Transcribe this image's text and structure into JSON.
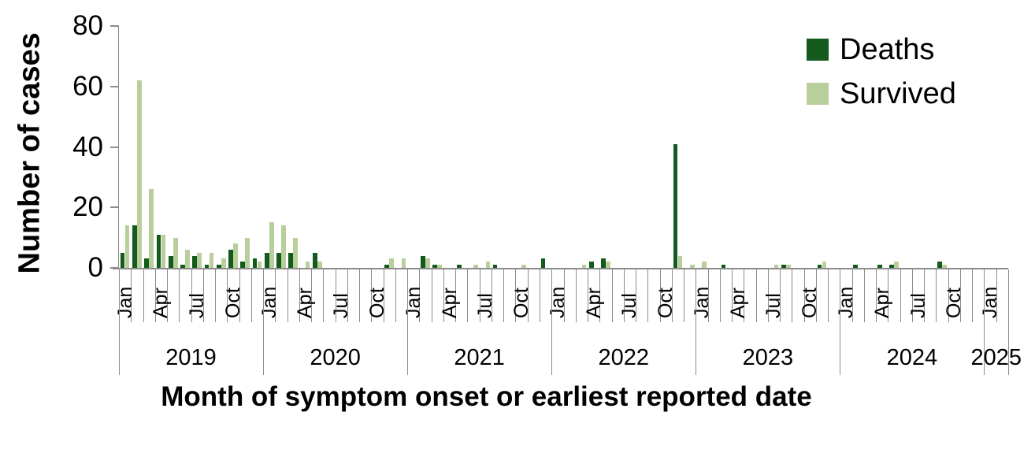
{
  "chart_data": {
    "type": "bar",
    "title": "",
    "xlabel": "Month of symptom onset or earliest reported date",
    "ylabel": "Number of cases",
    "ylim": [
      0,
      80
    ],
    "y_ticks": [
      0,
      20,
      40,
      60,
      80
    ],
    "grid": false,
    "legend_position": "top-right",
    "x_tick_labels_shown": [
      "Jan",
      "Apr",
      "Jul",
      "Oct"
    ],
    "years": [
      {
        "label": "2019",
        "months": 12
      },
      {
        "label": "2020",
        "months": 12
      },
      {
        "label": "2021",
        "months": 12
      },
      {
        "label": "2022",
        "months": 12
      },
      {
        "label": "2023",
        "months": 12
      },
      {
        "label": "2024",
        "months": 12
      },
      {
        "label": "2025",
        "months": 2
      }
    ],
    "categories": [
      "Jan 2019",
      "Feb 2019",
      "Mar 2019",
      "Apr 2019",
      "May 2019",
      "Jun 2019",
      "Jul 2019",
      "Aug 2019",
      "Sep 2019",
      "Oct 2019",
      "Nov 2019",
      "Dec 2019",
      "Jan 2020",
      "Feb 2020",
      "Mar 2020",
      "Apr 2020",
      "May 2020",
      "Jun 2020",
      "Jul 2020",
      "Aug 2020",
      "Sep 2020",
      "Oct 2020",
      "Nov 2020",
      "Dec 2020",
      "Jan 2021",
      "Feb 2021",
      "Mar 2021",
      "Apr 2021",
      "May 2021",
      "Jun 2021",
      "Jul 2021",
      "Aug 2021",
      "Sep 2021",
      "Oct 2021",
      "Nov 2021",
      "Dec 2021",
      "Jan 2022",
      "Feb 2022",
      "Mar 2022",
      "Apr 2022",
      "May 2022",
      "Jun 2022",
      "Jul 2022",
      "Aug 2022",
      "Sep 2022",
      "Oct 2022",
      "Nov 2022",
      "Dec 2022",
      "Jan 2023",
      "Feb 2023",
      "Mar 2023",
      "Apr 2023",
      "May 2023",
      "Jun 2023",
      "Jul 2023",
      "Aug 2023",
      "Sep 2023",
      "Oct 2023",
      "Nov 2023",
      "Dec 2023",
      "Jan 2024",
      "Feb 2024",
      "Mar 2024",
      "Apr 2024",
      "May 2024",
      "Jun 2024",
      "Jul 2024",
      "Aug 2024",
      "Sep 2024",
      "Oct 2024",
      "Nov 2024",
      "Dec 2024",
      "Jan 2025",
      "Feb 2025"
    ],
    "series": [
      {
        "name": "Deaths",
        "color": "#145a1c",
        "values": [
          5,
          14,
          3,
          11,
          4,
          1,
          4,
          1,
          1,
          6,
          2,
          3,
          5,
          5,
          5,
          0,
          5,
          0,
          0,
          0,
          0,
          0,
          1,
          0,
          0,
          4,
          1,
          0,
          1,
          0,
          0,
          1,
          0,
          0,
          0,
          3,
          0,
          0,
          0,
          2,
          3,
          0,
          0,
          0,
          0,
          0,
          41,
          0,
          0,
          0,
          1,
          0,
          0,
          0,
          0,
          1,
          0,
          0,
          1,
          0,
          0,
          1,
          0,
          1,
          1,
          0,
          0,
          0,
          2,
          0,
          0,
          0,
          0,
          0
        ]
      },
      {
        "name": "Survived",
        "color": "#b8cf9b",
        "values": [
          14,
          62,
          26,
          11,
          10,
          6,
          5,
          5,
          3,
          8,
          10,
          2,
          15,
          14,
          10,
          2,
          2,
          0,
          0,
          0,
          0,
          0,
          3,
          3,
          0,
          3,
          1,
          0,
          0,
          1,
          2,
          0,
          0,
          1,
          0,
          0,
          0,
          0,
          1,
          0,
          2,
          0,
          0,
          0,
          0,
          0,
          4,
          1,
          2,
          0,
          0,
          0,
          0,
          0,
          1,
          1,
          0,
          0,
          2,
          0,
          0,
          0,
          0,
          0,
          2,
          0,
          0,
          0,
          1,
          0,
          0,
          0,
          0,
          0
        ]
      }
    ],
    "colors": {
      "deaths": "#145a1c",
      "survived": "#b8cf9b",
      "axis": "#8c8c8c",
      "text": "#000000"
    }
  }
}
